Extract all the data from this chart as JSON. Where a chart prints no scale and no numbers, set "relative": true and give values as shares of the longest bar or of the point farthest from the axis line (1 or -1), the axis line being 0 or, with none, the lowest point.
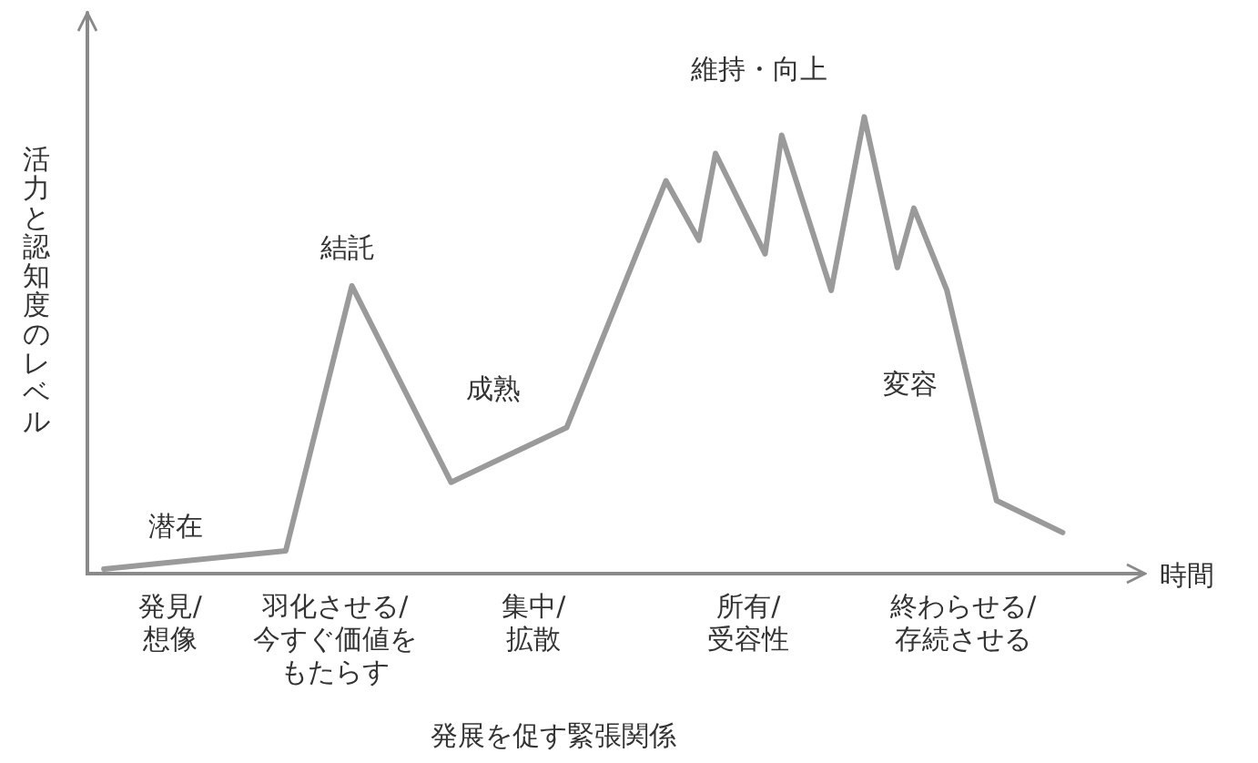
{
  "chart_data": {
    "type": "line",
    "relative": true,
    "xlabel": "時間",
    "ylabel": "活力と認知度のレベル",
    "categories": [
      null,
      null,
      null,
      null,
      null,
      "発見/想像",
      null,
      null,
      null,
      null,
      null,
      null,
      null,
      null,
      null,
      "羽化させる/今すぐ価値をもたらす",
      null,
      null,
      null,
      null,
      null,
      null,
      null,
      null,
      null,
      null,
      null,
      "集中/拡散",
      null,
      null,
      null,
      null,
      null,
      null,
      null,
      null,
      null,
      null,
      null,
      null,
      "所有/受容性",
      null,
      null,
      null,
      null,
      null,
      null,
      null,
      null,
      null,
      null,
      null,
      null,
      "終わらせる/存続させる",
      null,
      null,
      null,
      null,
      null,
      null,
      null,
      null,
      null,
      null
    ],
    "series": [
      {
        "color": "#9a9a9a",
        "values": [
          null,
          0.01,
          null,
          null,
          null,
          null,
          null,
          null,
          null,
          null,
          null,
          null,
          0.05,
          null,
          null,
          null,
          0.63,
          null,
          null,
          null,
          null,
          null,
          0.2,
          null,
          null,
          null,
          null,
          null,
          null,
          0.32,
          null,
          null,
          null,
          null,
          null,
          0.86,
          null,
          0.73,
          0.92,
          null,
          null,
          0.7,
          0.96,
          null,
          null,
          0.62,
          null,
          1,
          null,
          0.67,
          0.8,
          null,
          0.62,
          null,
          null,
          0.16,
          null,
          null,
          null,
          0.09,
          null,
          null,
          null,
          null
        ]
      }
    ],
    "annotations": [
      "潜在",
      "結託",
      "成熟",
      "維持・向上",
      "変容",
      "発展を促す緊張関係"
    ],
    "grid": false,
    "legend": false,
    "marker": "none",
    "line_style": "solid"
  }
}
